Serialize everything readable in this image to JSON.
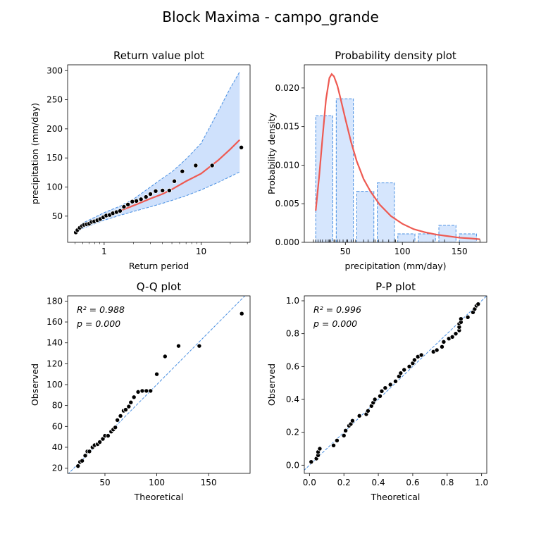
{
  "figure": {
    "title": "Block Maxima - campo_grande"
  },
  "colors": {
    "fit": "#ee5a52",
    "band": "#cfe1fc",
    "band_edge": "#4a90e2",
    "points": "#000000",
    "hist_fill": "#d6e6fd",
    "hist_edge": "#4a90e2",
    "refline": "#4a90e2"
  },
  "chart_data": [
    {
      "id": "return_value",
      "type": "scatter",
      "title": "Return value plot",
      "xlabel": "Return period",
      "ylabel": "precipitation (mm/day)",
      "xscale": "log",
      "xlim": [
        0.42,
        32
      ],
      "ylim": [
        5,
        310
      ],
      "xticks": [
        1,
        10
      ],
      "xtick_labels": [
        "1",
        "10"
      ],
      "yticks": [
        50,
        100,
        150,
        200,
        250,
        300
      ],
      "fit": {
        "x": [
          0.5,
          0.6,
          0.8,
          1,
          1.5,
          2,
          3,
          4,
          5,
          7,
          10,
          15,
          20,
          25
        ],
        "y": [
          23,
          33,
          43,
          50,
          60,
          68,
          80,
          88,
          96,
          110,
          123,
          146,
          165,
          181
        ]
      },
      "ci_upper": {
        "x": [
          0.5,
          0.6,
          0.8,
          1,
          1.5,
          2,
          3,
          4,
          5,
          7,
          10,
          15,
          20,
          25
        ],
        "y": [
          26,
          38,
          48,
          56,
          68,
          79,
          100,
          115,
          126,
          148,
          175,
          230,
          270,
          298
        ]
      },
      "ci_lower": {
        "x": [
          0.5,
          0.6,
          0.8,
          1,
          1.5,
          2,
          3,
          4,
          5,
          7,
          10,
          15,
          20,
          25
        ],
        "y": [
          20,
          29,
          37,
          43,
          52,
          58,
          66,
          72,
          77,
          85,
          95,
          108,
          118,
          126
        ]
      },
      "points": {
        "x": [
          0.51,
          0.53,
          0.56,
          0.59,
          0.62,
          0.66,
          0.7,
          0.74,
          0.79,
          0.85,
          0.91,
          0.98,
          1.05,
          1.14,
          1.23,
          1.34,
          1.46,
          1.6,
          1.76,
          1.95,
          2.15,
          2.4,
          2.7,
          3.0,
          3.4,
          4.0,
          4.7,
          5.3,
          6.4,
          8.8,
          13,
          26
        ],
        "y": [
          22,
          26,
          30,
          33,
          35,
          36,
          37,
          40,
          41,
          43,
          45,
          48,
          51,
          52,
          55,
          57,
          59,
          66,
          70,
          75,
          76,
          79,
          83,
          88,
          93,
          94,
          94,
          110,
          127,
          137,
          137,
          168
        ]
      }
    },
    {
      "id": "density",
      "type": "bar",
      "title": "Probability density plot",
      "xlabel": "precipitation (mm/day)",
      "ylabel": "Probability density",
      "xlim": [
        14,
        174
      ],
      "ylim": [
        0,
        0.023
      ],
      "xticks": [
        50,
        100,
        150
      ],
      "yticks": [
        0,
        0.005,
        0.01,
        0.015,
        0.02
      ],
      "ytick_labels": [
        "0.000",
        "0.005",
        "0.010",
        "0.015",
        "0.020"
      ],
      "bins": [
        [
          24,
          39
        ],
        [
          42,
          57
        ],
        [
          60,
          75
        ],
        [
          78,
          93
        ],
        [
          96,
          111
        ],
        [
          114,
          129
        ],
        [
          132,
          147
        ],
        [
          150,
          165
        ]
      ],
      "values": [
        0.0164,
        0.0186,
        0.0066,
        0.0077,
        0.0011,
        0.0011,
        0.0022,
        0.0011
      ],
      "curve": {
        "x": [
          24,
          27,
          30,
          33,
          36,
          38,
          40,
          43,
          46,
          50,
          55,
          60,
          66,
          72,
          80,
          90,
          100,
          110,
          120,
          130,
          140,
          150,
          160,
          168
        ],
        "y": [
          0.0041,
          0.0085,
          0.0136,
          0.0185,
          0.0213,
          0.0218,
          0.0215,
          0.0203,
          0.0185,
          0.016,
          0.013,
          0.0105,
          0.0082,
          0.0066,
          0.0049,
          0.0034,
          0.0024,
          0.0017,
          0.0013,
          0.001,
          0.0008,
          0.0006,
          0.0005,
          0.0004
        ]
      },
      "rug": [
        22,
        24,
        26,
        28,
        30,
        33,
        35,
        36,
        37,
        40,
        41,
        43,
        45,
        48,
        51,
        52,
        55,
        57,
        59,
        66,
        70,
        75,
        76,
        79,
        83,
        88,
        93,
        94,
        110,
        127,
        137,
        168
      ]
    },
    {
      "id": "qq",
      "type": "scatter",
      "title": "Q-Q plot",
      "xlabel": "Theoretical",
      "ylabel": "Observed",
      "xlim": [
        14,
        190
      ],
      "ylim": [
        15,
        185
      ],
      "xticks": [
        50,
        100,
        150
      ],
      "yticks": [
        20,
        40,
        60,
        80,
        100,
        120,
        140,
        160,
        180
      ],
      "r2_text": "R² = 0.988",
      "p_text": "p = 0.000",
      "points": {
        "x": [
          24,
          26,
          28,
          31,
          33,
          35,
          38,
          40,
          43,
          45,
          48,
          50,
          53,
          56,
          58,
          60,
          62,
          65,
          68,
          70,
          73,
          75,
          78,
          82,
          86,
          90,
          94,
          100,
          108,
          121,
          141,
          182
        ],
        "y": [
          22,
          26,
          27,
          32,
          36,
          36,
          40,
          42,
          43,
          45,
          48,
          51,
          51,
          55,
          57,
          59,
          66,
          70,
          75,
          76,
          79,
          83,
          88,
          93,
          94,
          94,
          94,
          110,
          127,
          137,
          137,
          168
        ]
      }
    },
    {
      "id": "pp",
      "type": "scatter",
      "title": "P-P plot",
      "xlabel": "Theoretical",
      "ylabel": "Observed",
      "xlim": [
        -0.03,
        1.03
      ],
      "ylim": [
        -0.05,
        1.03
      ],
      "xticks": [
        0,
        0.2,
        0.4,
        0.6,
        0.8,
        1.0
      ],
      "xtick_labels": [
        "0.0",
        "0.2",
        "0.4",
        "0.6",
        "0.8",
        "1.0"
      ],
      "yticks": [
        0,
        0.2,
        0.4,
        0.6,
        0.8,
        1.0
      ],
      "ytick_labels": [
        "0.0",
        "0.2",
        "0.4",
        "0.6",
        "0.8",
        "1.0"
      ],
      "r2_text": "R² = 0.996",
      "p_text": "p = 0.000",
      "points": {
        "x": [
          0.01,
          0.04,
          0.05,
          0.05,
          0.06,
          0.14,
          0.16,
          0.2,
          0.21,
          0.23,
          0.24,
          0.25,
          0.29,
          0.33,
          0.34,
          0.36,
          0.37,
          0.38,
          0.41,
          0.42,
          0.44,
          0.47,
          0.5,
          0.52,
          0.53,
          0.55,
          0.58,
          0.6,
          0.61,
          0.63,
          0.65,
          0.72
        ],
        "y": [
          0.02,
          0.04,
          0.06,
          0.08,
          0.1,
          0.12,
          0.15,
          0.18,
          0.21,
          0.24,
          0.25,
          0.27,
          0.3,
          0.31,
          0.33,
          0.36,
          0.38,
          0.4,
          0.42,
          0.45,
          0.47,
          0.49,
          0.51,
          0.54,
          0.56,
          0.58,
          0.6,
          0.62,
          0.64,
          0.66,
          0.67,
          0.69
        ]
      },
      "points_upper": {
        "x": [
          0.74,
          0.77,
          0.78,
          0.81,
          0.83,
          0.85,
          0.87,
          0.87,
          0.87,
          0.88,
          0.88,
          0.92,
          0.95,
          0.96,
          0.97,
          0.98
        ],
        "y": [
          0.7,
          0.72,
          0.75,
          0.77,
          0.78,
          0.8,
          0.82,
          0.84,
          0.86,
          0.87,
          0.89,
          0.9,
          0.93,
          0.95,
          0.97,
          0.98
        ]
      }
    }
  ]
}
